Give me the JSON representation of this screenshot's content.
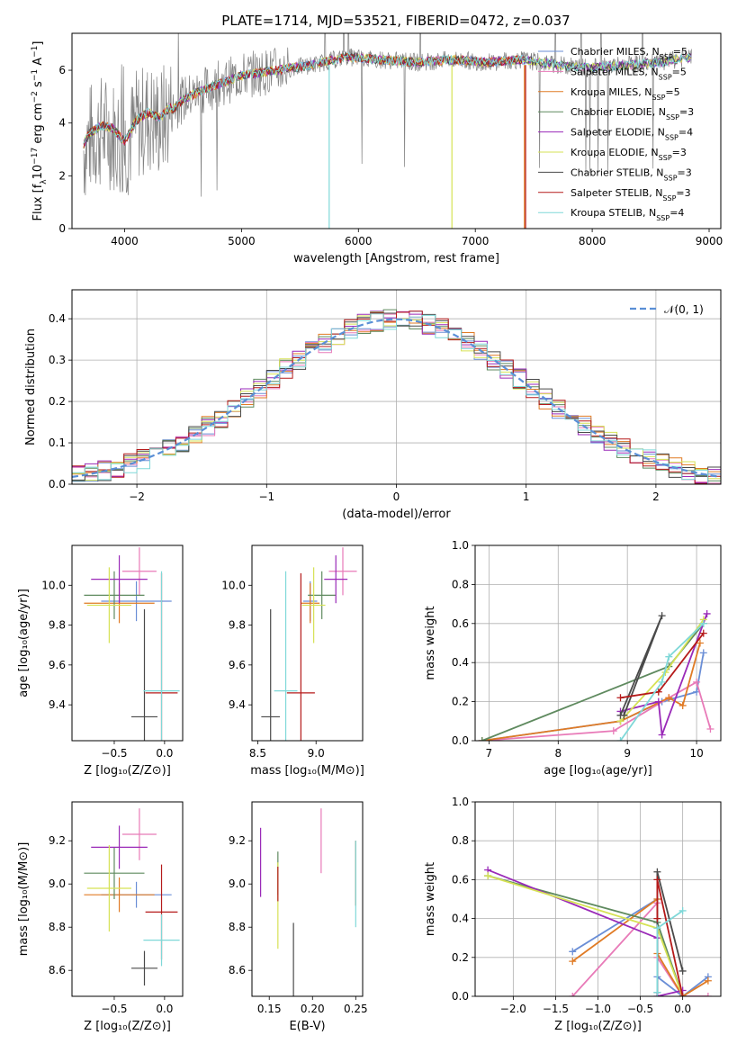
{
  "title": "PLATE=1714, MJD=53521, FIBERID=0472, z=0.037",
  "models": [
    {
      "name": "Chabrier MILES, N$_{SSP}$=5",
      "label": "Chabrier MILES, N",
      "nssp": "=5",
      "color": "#6a8ed6"
    },
    {
      "name": "Salpeter MILES, N$_{SSP}$=5",
      "label": "Salpeter MILES, N",
      "nssp": "=5",
      "color": "#e87ab8"
    },
    {
      "name": "Kroupa MILES, N$_{SSP}$=5",
      "label": "Kroupa MILES, N",
      "nssp": "=5",
      "color": "#e07b25"
    },
    {
      "name": "Chabrier ELODIE, N$_{SSP}$=3",
      "label": "Chabrier ELODIE, N",
      "nssp": "=3",
      "color": "#5f8a5f"
    },
    {
      "name": "Salpeter ELODIE, N$_{SSP}$=4",
      "label": "Salpeter ELODIE, N",
      "nssp": "=4",
      "color": "#9a2ab8"
    },
    {
      "name": "Kroupa ELODIE, N$_{SSP}$=3",
      "label": "Kroupa ELODIE, N",
      "nssp": "=3",
      "color": "#d6e255"
    },
    {
      "name": "Chabrier STELIB, N$_{SSP}$=3",
      "label": "Chabrier STELIB, N",
      "nssp": "=3",
      "color": "#4a4a4a"
    },
    {
      "name": "Salpeter STELIB, N$_{SSP}$=3",
      "label": "Salpeter STELIB, N",
      "nssp": "=3",
      "color": "#b51a1a"
    },
    {
      "name": "Kroupa STELIB, N$_{SSP}$=4",
      "label": "Kroupa STELIB, N",
      "nssp": "=4",
      "color": "#7fd8d8"
    }
  ],
  "ssp_subscript": "SSP",
  "chart_data": [
    {
      "id": "spectrum",
      "type": "line",
      "xlabel": "wavelength [Angstrom, rest frame]",
      "ylabel_parts": [
        "Flux [f",
        "λ",
        "10",
        "−17",
        " erg cm",
        "−2",
        " s",
        "−1",
        " A",
        "−1",
        "]"
      ],
      "xlim": [
        3550,
        9100
      ],
      "ylim": [
        0,
        7.4
      ],
      "xticks": [
        4000,
        5000,
        6000,
        7000,
        8000,
        9000
      ],
      "yticks": [
        0,
        2,
        4,
        6
      ],
      "data_curve": {
        "x": [
          3650,
          3700,
          3800,
          3900,
          4000,
          4100,
          4200,
          4300,
          4500,
          4700,
          5000,
          5300,
          5600,
          5900,
          6200,
          6500,
          6800,
          7100,
          7400,
          7700,
          8000,
          8300,
          8600,
          8850
        ],
        "y": [
          3.0,
          3.4,
          3.7,
          3.6,
          3.1,
          3.9,
          4.2,
          4.0,
          4.9,
          5.3,
          5.8,
          6.0,
          6.2,
          6.5,
          6.4,
          6.3,
          6.4,
          6.3,
          6.4,
          6.2,
          6.1,
          6.2,
          6.3,
          6.5
        ]
      },
      "data_color": "#808080"
    },
    {
      "id": "residuals",
      "type": "histogram",
      "xlabel": "(data-model)/error",
      "ylabel": "Normed distribution",
      "xlim": [
        -2.5,
        2.5
      ],
      "ylim": [
        0,
        0.47
      ],
      "xticks": [
        -2,
        -1,
        0,
        1,
        2
      ],
      "xtick_labels": [
        "−2",
        "−1",
        "0",
        "1",
        "2"
      ],
      "yticks": [
        0.0,
        0.1,
        0.2,
        0.3,
        0.4
      ],
      "ytick_labels": [
        "0.0",
        "0.1",
        "0.2",
        "0.3",
        "0.4"
      ],
      "bins": {
        "start": -2.5,
        "width": 0.1,
        "count": 50
      },
      "gaussian_label": "𝒩(0, 1)",
      "gaussian_color": "#5a8fd6",
      "grid": true,
      "legend": "top-right"
    },
    {
      "id": "age_vs_Z",
      "type": "errorbar",
      "xlabel": "Z [log₁₀(Z/Z⊙)]",
      "ylabel": "age  [log₁₀(age/yr)]",
      "xlim": [
        -0.92,
        0.18
      ],
      "ylim": [
        9.22,
        10.2
      ],
      "xticks": [
        -0.5,
        0.0
      ],
      "xtick_labels": [
        "−0.5",
        "0.0"
      ],
      "yticks": [
        9.4,
        9.6,
        9.8,
        10.0
      ],
      "ytick_labels": [
        "9.4",
        "9.6",
        "9.8",
        "10.0"
      ],
      "points": [
        {
          "x": -0.28,
          "xerr": 0.35,
          "y": 9.92,
          "yerr": 0.1
        },
        {
          "x": -0.25,
          "xerr": 0.17,
          "y": 10.07,
          "yerr": 0.12
        },
        {
          "x": -0.45,
          "xerr": 0.35,
          "y": 9.91,
          "yerr": 0.1
        },
        {
          "x": -0.5,
          "xerr": 0.3,
          "y": 9.95,
          "yerr": 0.12
        },
        {
          "x": -0.45,
          "xerr": 0.28,
          "y": 10.03,
          "yerr": 0.12
        },
        {
          "x": -0.55,
          "xerr": 0.22,
          "y": 9.9,
          "yerr": 0.19
        },
        {
          "x": -0.2,
          "xerr": 0.13,
          "y": 9.34,
          "yerr": 0.54
        },
        {
          "x": -0.03,
          "xerr": 0.16,
          "y": 9.46,
          "yerr": 0.6
        },
        {
          "x": -0.03,
          "xerr": 0.18,
          "y": 9.47,
          "yerr": 0.6
        }
      ]
    },
    {
      "id": "age_vs_mass",
      "type": "errorbar",
      "xlabel": "mass [log₁₀(M/M⊙)]",
      "ylabel": "",
      "xlim": [
        8.45,
        9.4
      ],
      "ylim": [
        9.22,
        10.2
      ],
      "xticks": [
        8.5,
        9.0
      ],
      "xtick_labels": [
        "8.5",
        "9.0"
      ],
      "yticks": [
        9.4,
        9.6,
        9.8,
        10.0
      ],
      "ytick_labels": [
        "9.4",
        "9.6",
        "9.8",
        "10.0"
      ],
      "points": [
        {
          "x": 8.95,
          "xerr": 0.06,
          "y": 9.92,
          "yerr": 0.1
        },
        {
          "x": 9.23,
          "xerr": 0.12,
          "y": 10.07,
          "yerr": 0.12
        },
        {
          "x": 8.95,
          "xerr": 0.08,
          "y": 9.91,
          "yerr": 0.1
        },
        {
          "x": 9.05,
          "xerr": 0.12,
          "y": 9.95,
          "yerr": 0.12
        },
        {
          "x": 9.17,
          "xerr": 0.1,
          "y": 10.03,
          "yerr": 0.12
        },
        {
          "x": 8.98,
          "xerr": 0.1,
          "y": 9.9,
          "yerr": 0.19
        },
        {
          "x": 8.61,
          "xerr": 0.08,
          "y": 9.34,
          "yerr": 0.54
        },
        {
          "x": 8.87,
          "xerr": 0.12,
          "y": 9.46,
          "yerr": 0.6
        },
        {
          "x": 8.74,
          "xerr": 0.1,
          "y": 9.47,
          "yerr": 0.6
        }
      ]
    },
    {
      "id": "weight_vs_age",
      "type": "line",
      "xlabel": "age  [log₁₀(age/yr)]",
      "ylabel": "mass weight",
      "xlim": [
        6.8,
        10.35
      ],
      "ylim": [
        0,
        1.0
      ],
      "xticks": [
        7,
        8,
        9,
        10
      ],
      "xtick_labels": [
        "7",
        "8",
        "9",
        "10"
      ],
      "yticks": [
        0.0,
        0.2,
        0.4,
        0.6,
        0.8,
        1.0
      ],
      "ytick_labels": [
        "0.0",
        "0.2",
        "0.4",
        "0.6",
        "0.8",
        "1.0"
      ],
      "grid": true,
      "series": [
        {
          "x": [
            6.9,
            8.9,
            9.5,
            10.0,
            10.1
          ],
          "y": [
            0.0,
            0.1,
            0.2,
            0.25,
            0.45
          ]
        },
        {
          "x": [
            6.9,
            8.8,
            9.6,
            10.0,
            10.2
          ],
          "y": [
            0.0,
            0.05,
            0.22,
            0.3,
            0.06
          ]
        },
        {
          "x": [
            6.9,
            8.9,
            9.6,
            9.8,
            10.05
          ],
          "y": [
            0.0,
            0.1,
            0.22,
            0.18,
            0.5
          ]
        },
        {
          "x": [
            6.9,
            9.6,
            10.1
          ],
          "y": [
            0.0,
            0.38,
            0.6
          ]
        },
        {
          "x": [
            8.9,
            9.45,
            9.5,
            10.15
          ],
          "y": [
            0.15,
            0.2,
            0.03,
            0.65
          ]
        },
        {
          "x": [
            8.9,
            9.55,
            10.1
          ],
          "y": [
            0.1,
            0.35,
            0.62
          ]
        },
        {
          "x": [
            8.9,
            9.5,
            8.95
          ],
          "y": [
            0.13,
            0.64,
            0.13
          ]
        },
        {
          "x": [
            8.9,
            9.45,
            10.1
          ],
          "y": [
            0.22,
            0.25,
            0.55
          ]
        },
        {
          "x": [
            8.9,
            9.5,
            9.6,
            10.1
          ],
          "y": [
            0.0,
            0.3,
            0.43,
            0.6
          ]
        }
      ]
    },
    {
      "id": "mass_vs_Z",
      "type": "errorbar",
      "xlabel": "Z [log₁₀(Z/Z⊙)]",
      "ylabel": "mass [log₁₀(M/M⊙)]",
      "xlim": [
        -0.92,
        0.18
      ],
      "ylim": [
        8.48,
        9.38
      ],
      "xticks": [
        -0.5,
        0.0
      ],
      "xtick_labels": [
        "−0.5",
        "0.0"
      ],
      "yticks": [
        8.6,
        8.8,
        9.0,
        9.2
      ],
      "ytick_labels": [
        "8.6",
        "8.8",
        "9.0",
        "9.2"
      ],
      "points": [
        {
          "x": -0.28,
          "xerr": 0.35,
          "y": 8.95,
          "yerr": 0.06
        },
        {
          "x": -0.25,
          "xerr": 0.17,
          "y": 9.23,
          "yerr": 0.12
        },
        {
          "x": -0.45,
          "xerr": 0.35,
          "y": 8.95,
          "yerr": 0.08
        },
        {
          "x": -0.5,
          "xerr": 0.3,
          "y": 9.05,
          "yerr": 0.12
        },
        {
          "x": -0.45,
          "xerr": 0.28,
          "y": 9.17,
          "yerr": 0.1
        },
        {
          "x": -0.55,
          "xerr": 0.22,
          "y": 8.98,
          "yerr": 0.2
        },
        {
          "x": -0.2,
          "xerr": 0.13,
          "y": 8.61,
          "yerr": 0.08
        },
        {
          "x": -0.03,
          "xerr": 0.16,
          "y": 8.87,
          "yerr": 0.22
        },
        {
          "x": -0.03,
          "xerr": 0.18,
          "y": 8.74,
          "yerr": 0.12
        }
      ]
    },
    {
      "id": "mass_vs_ebv",
      "type": "errorbar",
      "xlabel": "E(B-V)",
      "ylabel": "",
      "xlim": [
        0.13,
        0.258
      ],
      "ylim": [
        8.48,
        9.38
      ],
      "xticks": [
        0.15,
        0.2,
        0.25
      ],
      "xtick_labels": [
        "0.15",
        "0.20",
        "0.25"
      ],
      "yticks": [
        8.6,
        8.8,
        9.0,
        9.2
      ],
      "ytick_labels": [
        "8.6",
        "8.8",
        "9.0",
        "9.2"
      ],
      "points": [
        {
          "x": 0.25,
          "y": 9.05,
          "yerr": 0.15
        },
        {
          "x": 0.21,
          "y": 9.2,
          "yerr": 0.15
        },
        {
          "x": 0.25,
          "y": 9.05,
          "yerr": 0.15
        },
        {
          "x": 0.16,
          "y": 9.05,
          "yerr": 0.1
        },
        {
          "x": 0.14,
          "y": 9.1,
          "yerr": 0.16
        },
        {
          "x": 0.16,
          "y": 8.9,
          "yerr": 0.2
        },
        {
          "x": 0.178,
          "y": 8.65,
          "yerr": 0.17
        },
        {
          "x": 0.16,
          "y": 9.0,
          "yerr": 0.08
        },
        {
          "x": 0.25,
          "y": 9.0,
          "yerr": 0.2
        }
      ]
    },
    {
      "id": "weight_vs_Z",
      "type": "line",
      "xlabel": "Z [log₁₀(Z/Z⊙)]",
      "ylabel": "mass weight",
      "xlim": [
        -2.45,
        0.45
      ],
      "ylim": [
        0,
        1.0
      ],
      "xticks": [
        -2.0,
        -1.5,
        -1.0,
        -0.5,
        0.0
      ],
      "xtick_labels": [
        "−2.0",
        "−1.5",
        "−1.0",
        "−0.5",
        "0.0"
      ],
      "yticks": [
        0.0,
        0.2,
        0.4,
        0.6,
        0.8,
        1.0
      ],
      "ytick_labels": [
        "0.0",
        "0.2",
        "0.4",
        "0.6",
        "0.8",
        "1.0"
      ],
      "grid": true,
      "series": [
        {
          "x": [
            -1.3,
            -0.3,
            -0.3,
            0.0,
            0.3
          ],
          "y": [
            0.23,
            0.5,
            0.1,
            0.0,
            0.1
          ]
        },
        {
          "x": [
            -1.3,
            -0.3,
            -0.3,
            0.0,
            0.3
          ],
          "y": [
            0.0,
            0.48,
            0.2,
            0.0,
            0.0
          ]
        },
        {
          "x": [
            -1.3,
            -0.3,
            -0.3,
            0.0,
            0.3
          ],
          "y": [
            0.18,
            0.5,
            0.22,
            0.0,
            0.08
          ]
        },
        {
          "x": [
            -2.3,
            -0.3,
            0.0
          ],
          "y": [
            0.62,
            0.38,
            0.0
          ]
        },
        {
          "x": [
            -2.3,
            -0.3,
            -0.3,
            0.0
          ],
          "y": [
            0.65,
            0.3,
            0.0,
            0.03
          ]
        },
        {
          "x": [
            -2.3,
            -0.3,
            0.0
          ],
          "y": [
            0.62,
            0.35,
            0.0
          ]
        },
        {
          "x": [
            -0.3,
            -0.3,
            0.0
          ],
          "y": [
            0.02,
            0.64,
            0.13
          ]
        },
        {
          "x": [
            -0.3,
            -0.3,
            0.0
          ],
          "y": [
            0.4,
            0.6,
            0.0
          ]
        },
        {
          "x": [
            -0.3,
            -0.3,
            0.0
          ],
          "y": [
            0.02,
            0.35,
            0.44
          ]
        }
      ]
    }
  ]
}
